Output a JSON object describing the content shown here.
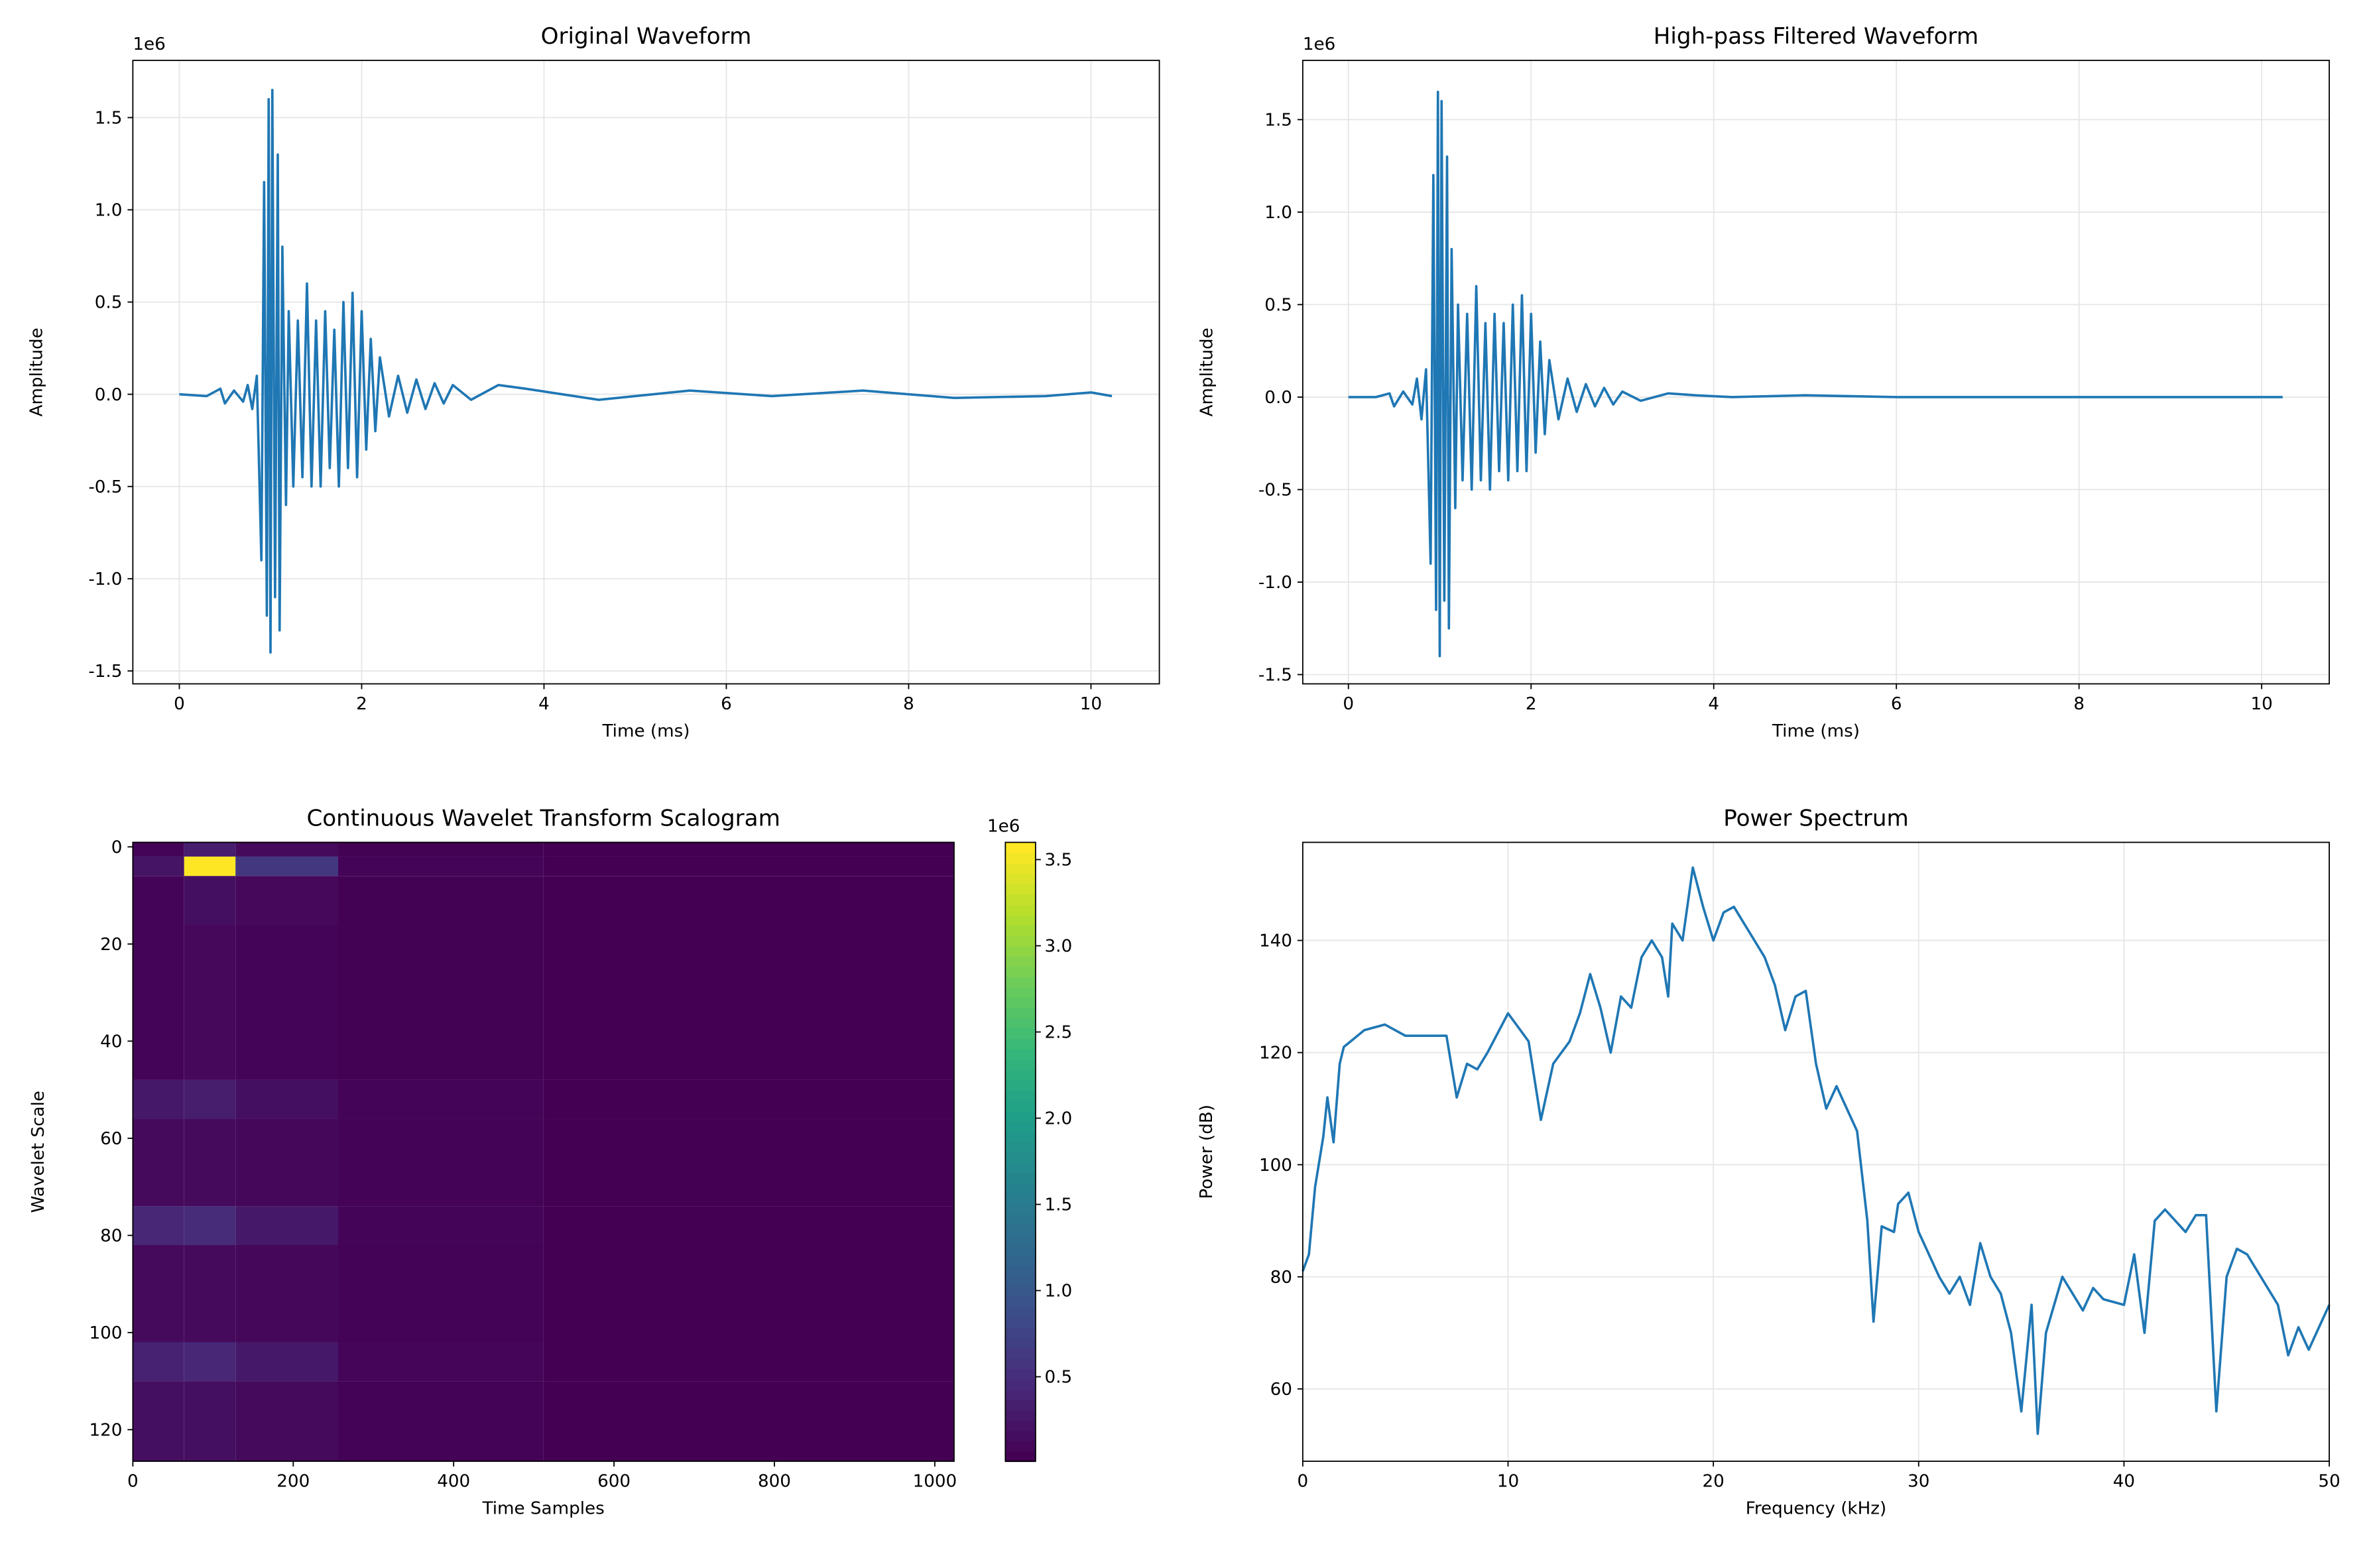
{
  "chart_data": [
    {
      "type": "line",
      "title": "Original Waveform",
      "xlabel": "Time (ms)",
      "ylabel": "Amplitude",
      "offset_text": "1e6",
      "grid": true,
      "xlim": [
        -0.51,
        10.75
      ],
      "ylim": [
        -1.57,
        1.81
      ],
      "xticks": [
        0,
        2,
        4,
        6,
        8,
        10
      ],
      "yticks": [
        -1.5,
        {
          "value": -1,
          "label": "-1.0"
        },
        -0.5,
        {
          "value": 0,
          "label": "0.0"
        },
        0.5,
        {
          "value": 1,
          "label": "1.0"
        },
        1.5
      ],
      "series": [
        {
          "color": "#1f77b4",
          "x": [
            0,
            0.3,
            0.45,
            0.5,
            0.6,
            0.7,
            0.75,
            0.8,
            0.85,
            0.9,
            0.93,
            0.96,
            0.98,
            1.0,
            1.02,
            1.05,
            1.08,
            1.1,
            1.13,
            1.17,
            1.2,
            1.25,
            1.3,
            1.35,
            1.4,
            1.45,
            1.5,
            1.55,
            1.6,
            1.65,
            1.7,
            1.75,
            1.8,
            1.85,
            1.9,
            1.95,
            2.0,
            2.05,
            2.1,
            2.15,
            2.2,
            2.3,
            2.4,
            2.5,
            2.6,
            2.7,
            2.8,
            2.9,
            3.0,
            3.2,
            3.5,
            3.8,
            4.2,
            4.6,
            5.0,
            5.6,
            6.5,
            7.5,
            8.5,
            9.5,
            10.0,
            10.23
          ],
          "values": [
            0,
            -0.01,
            0.03,
            -0.05,
            0.02,
            -0.04,
            0.05,
            -0.08,
            0.1,
            -0.9,
            1.15,
            -1.2,
            1.6,
            -1.4,
            1.65,
            -1.1,
            1.3,
            -1.28,
            0.8,
            -0.6,
            0.45,
            -0.5,
            0.4,
            -0.45,
            0.6,
            -0.5,
            0.4,
            -0.5,
            0.45,
            -0.4,
            0.35,
            -0.5,
            0.5,
            -0.4,
            0.55,
            -0.45,
            0.45,
            -0.3,
            0.3,
            -0.2,
            0.2,
            -0.12,
            0.1,
            -0.1,
            0.08,
            -0.08,
            0.06,
            -0.05,
            0.05,
            -0.03,
            0.05,
            0.03,
            0,
            -0.03,
            -0.01,
            0.02,
            -0.01,
            0.02,
            -0.02,
            -0.01,
            0.01,
            -0.01
          ]
        }
      ]
    },
    {
      "type": "line",
      "title": "High-pass Filtered Waveform",
      "xlabel": "Time (ms)",
      "ylabel": "Amplitude",
      "offset_text": "1e6",
      "grid": true,
      "xlim": [
        -0.5,
        10.74
      ],
      "ylim": [
        -1.55,
        1.82
      ],
      "xticks": [
        0,
        2,
        4,
        6,
        8,
        10
      ],
      "yticks": [
        -1.5,
        {
          "value": -1,
          "label": "-1.0"
        },
        -0.5,
        {
          "value": 0,
          "label": "0.0"
        },
        0.5,
        {
          "value": 1,
          "label": "1.0"
        },
        1.5
      ],
      "series": [
        {
          "color": "#1f77b4",
          "x": [
            0,
            0.3,
            0.45,
            0.5,
            0.6,
            0.7,
            0.75,
            0.8,
            0.85,
            0.9,
            0.93,
            0.96,
            0.98,
            1.0,
            1.02,
            1.05,
            1.08,
            1.1,
            1.13,
            1.17,
            1.2,
            1.25,
            1.3,
            1.35,
            1.4,
            1.45,
            1.5,
            1.55,
            1.6,
            1.65,
            1.7,
            1.75,
            1.8,
            1.85,
            1.9,
            1.95,
            2.0,
            2.05,
            2.1,
            2.15,
            2.2,
            2.3,
            2.4,
            2.5,
            2.6,
            2.7,
            2.8,
            2.9,
            3.0,
            3.2,
            3.5,
            3.8,
            4.2,
            5.0,
            6.0,
            7.0,
            8.0,
            9.0,
            10.23
          ],
          "values": [
            0,
            0,
            0.02,
            -0.05,
            0.03,
            -0.04,
            0.1,
            -0.12,
            0.15,
            -0.9,
            1.2,
            -1.15,
            1.65,
            -1.4,
            1.6,
            -1.1,
            1.3,
            -1.25,
            0.8,
            -0.6,
            0.5,
            -0.45,
            0.45,
            -0.5,
            0.6,
            -0.45,
            0.4,
            -0.5,
            0.45,
            -0.4,
            0.4,
            -0.45,
            0.5,
            -0.4,
            0.55,
            -0.4,
            0.45,
            -0.3,
            0.3,
            -0.2,
            0.2,
            -0.12,
            0.1,
            -0.08,
            0.07,
            -0.05,
            0.05,
            -0.04,
            0.03,
            -0.02,
            0.02,
            0.01,
            0,
            0.01,
            0,
            0,
            0,
            0,
            0
          ]
        }
      ]
    },
    {
      "type": "heatmap",
      "title": "Continuous Wavelet Transform Scalogram",
      "xlabel": "Time Samples",
      "ylabel": "Wavelet Scale",
      "colormap": "viridis",
      "offset_text": "1e6",
      "xlim": [
        0,
        1024
      ],
      "ylim": [
        126.5,
        -0.93
      ],
      "xticks": [
        0,
        200,
        400,
        600,
        800,
        1000
      ],
      "yticks": [
        0,
        20,
        40,
        60,
        80,
        100,
        120
      ],
      "x_edges": [
        0,
        64,
        128,
        256,
        512,
        1024
      ],
      "y_edges": [
        -0.93,
        2,
        6,
        16,
        48,
        56,
        74,
        82,
        102,
        110,
        126.5
      ],
      "z": [
        [
          0.05,
          0.3,
          0.1,
          0.02,
          0.01
        ],
        [
          0.2,
          3.6,
          0.6,
          0.05,
          0.01
        ],
        [
          0.05,
          0.15,
          0.08,
          0.02,
          0.01
        ],
        [
          0.05,
          0.08,
          0.05,
          0.02,
          0.01
        ],
        [
          0.25,
          0.3,
          0.15,
          0.04,
          0.01
        ],
        [
          0.1,
          0.1,
          0.07,
          0.03,
          0.01
        ],
        [
          0.4,
          0.45,
          0.25,
          0.05,
          0.01
        ],
        [
          0.1,
          0.1,
          0.07,
          0.03,
          0.01
        ],
        [
          0.35,
          0.4,
          0.25,
          0.06,
          0.01
        ],
        [
          0.15,
          0.15,
          0.1,
          0.03,
          0.01
        ]
      ],
      "clim": [
        0.01,
        3.6
      ],
      "cticks": [
        0.5,
        {
          "value": 1,
          "label": "1.0"
        },
        1.5,
        {
          "value": 2,
          "label": "2.0"
        },
        2.5,
        {
          "value": 3,
          "label": "3.0"
        },
        3.5
      ]
    },
    {
      "type": "line",
      "title": "Power Spectrum",
      "xlabel": "Frequency (kHz)",
      "ylabel": "Power (dB)",
      "grid": true,
      "xlim": [
        0,
        50
      ],
      "ylim": [
        47.1,
        157.5
      ],
      "xticks": [
        0,
        10,
        20,
        30,
        40,
        50
      ],
      "yticks": [
        60,
        80,
        100,
        120,
        140
      ],
      "series": [
        {
          "color": "#1f77b4",
          "x": [
            0,
            0.3,
            0.6,
            1.0,
            1.2,
            1.5,
            1.8,
            2,
            3,
            4,
            5,
            6,
            7,
            7.5,
            8,
            8.5,
            9,
            10,
            11,
            11.6,
            12.2,
            13,
            13.5,
            14,
            14.5,
            15,
            15.5,
            16,
            16.5,
            17,
            17.5,
            17.8,
            18,
            18.5,
            19,
            19.5,
            20,
            20.5,
            21,
            22,
            22.5,
            23,
            23.5,
            24,
            24.5,
            25,
            25.5,
            26,
            27,
            27.5,
            27.8,
            28.2,
            28.8,
            29,
            29.5,
            30,
            31,
            31.5,
            32,
            32.5,
            33,
            33.5,
            34,
            34.5,
            35,
            35.5,
            35.8,
            36.2,
            37,
            37.5,
            38,
            38.5,
            39,
            40,
            40.5,
            41,
            41.5,
            42,
            43,
            43.5,
            44,
            44.5,
            45,
            45.5,
            46,
            47,
            47.5,
            48,
            48.5,
            49,
            49.5,
            50
          ],
          "values": [
            81,
            84,
            96,
            105,
            112,
            104,
            118,
            121,
            124,
            125,
            123,
            123,
            123,
            112,
            118,
            117,
            120,
            127,
            122,
            108,
            118,
            122,
            127,
            134,
            128,
            120,
            130,
            128,
            137,
            140,
            137,
            130,
            143,
            140,
            153,
            146,
            140,
            145,
            146,
            140,
            137,
            132,
            124,
            130,
            131,
            118,
            110,
            114,
            106,
            90,
            72,
            89,
            88,
            93,
            95,
            88,
            80,
            77,
            80,
            75,
            86,
            80,
            77,
            70,
            56,
            75,
            52,
            70,
            80,
            77,
            74,
            78,
            76,
            75,
            84,
            70,
            90,
            92,
            88,
            91,
            91,
            56,
            80,
            85,
            84,
            78,
            75,
            66,
            71,
            67,
            71,
            75
          ]
        }
      ]
    }
  ]
}
